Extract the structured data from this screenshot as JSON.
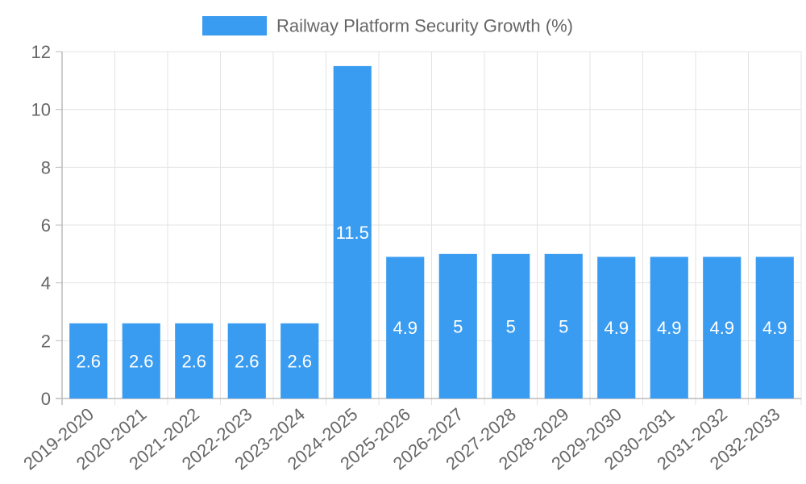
{
  "chart_data": {
    "type": "bar",
    "title": "",
    "xlabel": "",
    "ylabel": "",
    "ylim": [
      0,
      12
    ],
    "y_ticks": [
      0,
      2,
      4,
      6,
      8,
      10,
      12
    ],
    "grid": true,
    "legend_position": "top-center",
    "categories": [
      "2019-2020",
      "2020-2021",
      "2021-2022",
      "2022-2023",
      "2023-2024",
      "2024-2025",
      "2025-2026",
      "2026-2027",
      "2027-2028",
      "2028-2029",
      "2029-2030",
      "2030-2031",
      "2031-2032",
      "2032-2033"
    ],
    "series": [
      {
        "name": "Railway Platform Security Growth (%)",
        "color": "#3a9cf0",
        "values": [
          2.6,
          2.6,
          2.6,
          2.6,
          2.6,
          11.5,
          4.9,
          5,
          5,
          5,
          4.9,
          4.9,
          4.9,
          4.9
        ]
      }
    ]
  },
  "colors": {
    "grid": "#e3e3e3",
    "axis": "#bbbbbb",
    "text": "#666666",
    "bar_label": "#ffffff"
  }
}
